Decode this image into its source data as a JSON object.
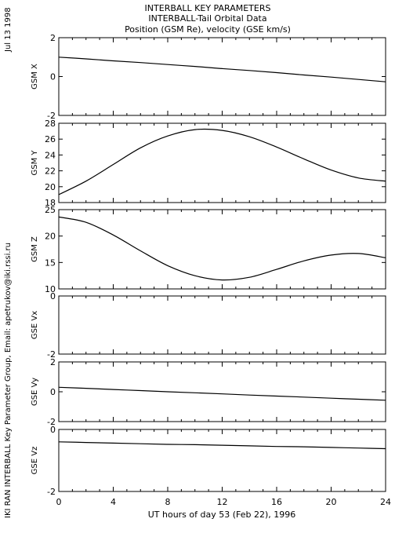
{
  "header": {
    "line1": "INTERBALL KEY PARAMETERS",
    "line2": "INTERBALL-Tail Orbital Data",
    "line3": "Position (GSM Re), velocity (GSE km/s)"
  },
  "side": {
    "date": "Jul 13 1998",
    "credit": "IKI RAN INTERBALL Key Parameter Group, Email: apetrukov@iki.rssi.ru"
  },
  "chart_data": {
    "type": "line",
    "x": [
      0,
      2,
      4,
      6,
      8,
      10,
      12,
      14,
      16,
      18,
      20,
      22,
      24
    ],
    "xlim": [
      0,
      24
    ],
    "xticks": [
      "0",
      "4",
      "8",
      "12",
      "16",
      "20",
      "24"
    ],
    "xlabel": "UT hours of day  53 (Feb 22), 1996",
    "panels": [
      {
        "ylabel": "GSM X",
        "ylim": [
          -2,
          2
        ],
        "yticks": [
          "2",
          "0",
          "-2"
        ],
        "values": [
          1.0,
          0.91,
          0.81,
          0.72,
          0.62,
          0.52,
          0.41,
          0.31,
          0.2,
          0.08,
          -0.03,
          -0.15,
          -0.27
        ]
      },
      {
        "ylabel": "GSM Y",
        "ylim": [
          18,
          28
        ],
        "yticks": [
          "28",
          "26",
          "24",
          "22",
          "20",
          "18"
        ],
        "values": [
          19.0,
          20.7,
          22.8,
          24.9,
          26.4,
          27.2,
          27.1,
          26.3,
          25.0,
          23.5,
          22.1,
          21.1,
          20.7
        ]
      },
      {
        "ylabel": "GSM Z",
        "ylim": [
          10,
          25
        ],
        "yticks": [
          "25",
          "20",
          "15",
          "10"
        ],
        "values": [
          23.6,
          22.6,
          20.2,
          17.2,
          14.4,
          12.5,
          11.7,
          12.2,
          13.7,
          15.3,
          16.4,
          16.7,
          15.9
        ]
      },
      {
        "ylabel": "GSE Vx",
        "ylim": [
          -2,
          0
        ],
        "yticks": [
          "0",
          "-2"
        ],
        "values": []
      },
      {
        "ylabel": "GSE Vy",
        "ylim": [
          -2,
          2
        ],
        "yticks": [
          "2",
          "0",
          "-2"
        ],
        "values": [
          0.3,
          0.23,
          0.15,
          0.08,
          0.0,
          -0.07,
          -0.14,
          -0.22,
          -0.29,
          -0.36,
          -0.43,
          -0.5,
          -0.57
        ]
      },
      {
        "ylabel": "GSE Vz",
        "ylim": [
          -2,
          0
        ],
        "yticks": [
          "0",
          "-2"
        ],
        "values": [
          -0.4,
          -0.42,
          -0.44,
          -0.46,
          -0.48,
          -0.49,
          -0.51,
          -0.53,
          -0.55,
          -0.56,
          -0.58,
          -0.6,
          -0.62
        ]
      }
    ]
  }
}
